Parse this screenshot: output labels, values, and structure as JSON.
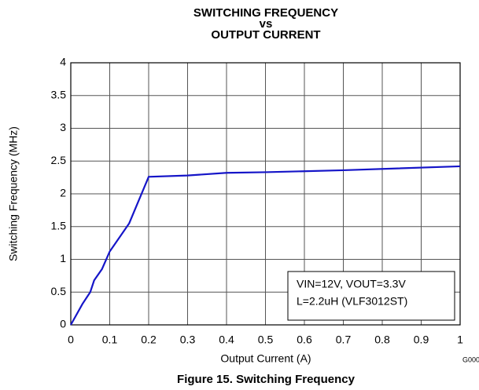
{
  "chart_data": {
    "type": "line",
    "title": [
      "SWITCHING FREQUENCY",
      "vs",
      "OUTPUT CURRENT"
    ],
    "x_label": "Output Current (A)",
    "y_label": "Switching Frequency (MHz)",
    "caption": "Figure 15. Switching Frequency",
    "figure_code": "G000",
    "annotation": [
      "VIN=12V, VOUT=3.3V",
      "L=2.2uH (VLF3012ST)"
    ],
    "x": [
      0,
      0.03,
      0.05,
      0.06,
      0.08,
      0.1,
      0.15,
      0.2,
      0.3,
      0.4,
      0.5,
      0.7,
      1
    ],
    "series": [
      {
        "name": "Switching Frequency",
        "color": "#1515c8",
        "values": [
          0,
          0.32,
          0.5,
          0.68,
          0.85,
          1.12,
          1.55,
          2.26,
          2.28,
          2.32,
          2.33,
          2.36,
          2.42
        ]
      }
    ],
    "xlim": [
      0,
      1
    ],
    "xticks": [
      0,
      0.1,
      0.2,
      0.3,
      0.4,
      0.5,
      0.6,
      0.7,
      0.8,
      0.9,
      1
    ],
    "ylim": [
      0,
      4
    ],
    "yticks": [
      0,
      0.5,
      1,
      1.5,
      2,
      2.5,
      3,
      3.5,
      4
    ],
    "grid": true
  }
}
